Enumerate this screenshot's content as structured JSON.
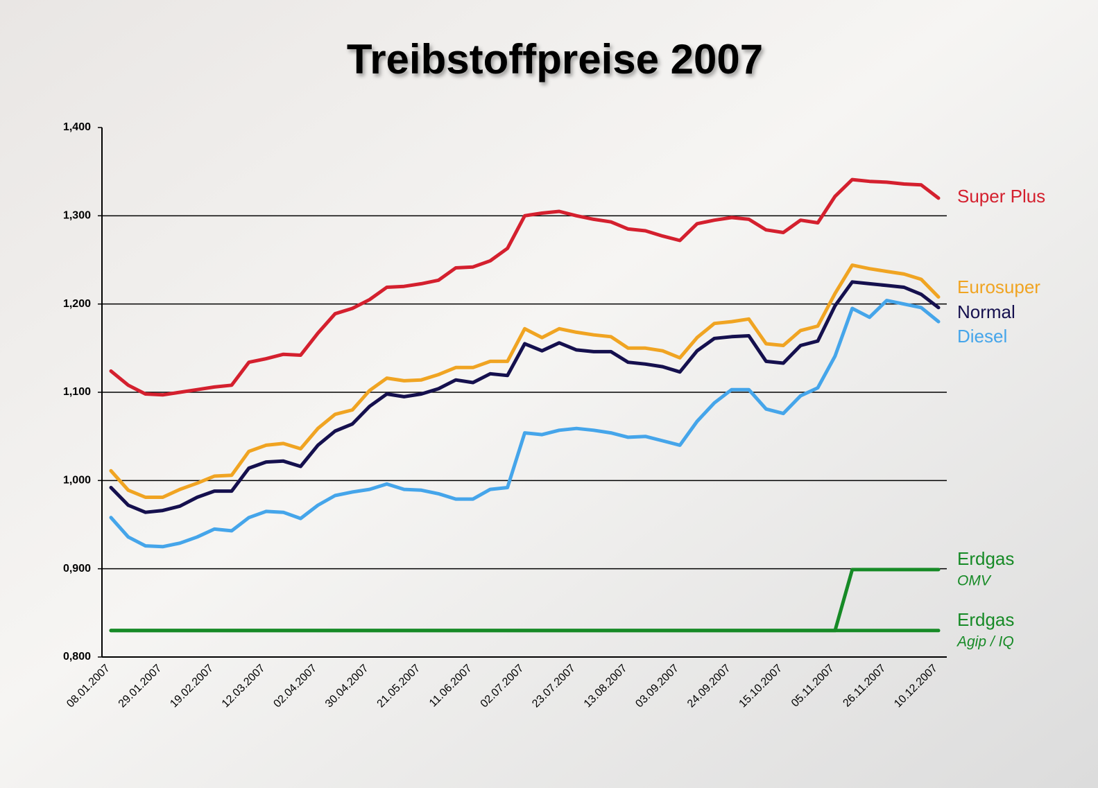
{
  "chart_data": {
    "type": "line",
    "title": "Treibstoffpreise 2007",
    "categories": [
      "08.01.2007",
      null,
      null,
      "29.01.2007",
      null,
      null,
      "19.02.2007",
      null,
      null,
      "12.03.2007",
      null,
      null,
      "02.04.2007",
      null,
      null,
      "30.04.2007",
      null,
      null,
      "21.05.2007",
      null,
      null,
      "11.06.2007",
      null,
      null,
      "02.07.2007",
      null,
      null,
      "23.07.2007",
      null,
      null,
      "13.08.2007",
      null,
      null,
      "03.09.2007",
      null,
      null,
      "24.09.2007",
      null,
      null,
      "15.10.2007",
      null,
      null,
      "05.11.2007",
      null,
      null,
      "26.11.2007",
      null,
      null,
      "10.12.2007"
    ],
    "ylim": [
      0.8,
      1.4
    ],
    "yticks": [
      {
        "value": 0.8,
        "label": "0,800"
      },
      {
        "value": 0.9,
        "label": "0,900"
      },
      {
        "value": 1.0,
        "label": "1,000"
      },
      {
        "value": 1.1,
        "label": "1,100"
      },
      {
        "value": 1.2,
        "label": "1,200"
      },
      {
        "value": 1.3,
        "label": "1,300"
      },
      {
        "value": 1.4,
        "label": "1,400"
      }
    ],
    "grid": true,
    "series": [
      {
        "name": "Super Plus",
        "color": "#d4202e",
        "values": [
          1.124,
          1.108,
          1.098,
          1.097,
          1.1,
          1.103,
          1.106,
          1.108,
          1.134,
          1.138,
          1.143,
          1.142,
          1.167,
          1.189,
          1.195,
          1.205,
          1.219,
          1.22,
          1.223,
          1.227,
          1.241,
          1.242,
          1.249,
          1.263,
          1.3,
          1.303,
          1.305,
          1.3,
          1.296,
          1.293,
          1.285,
          1.283,
          1.277,
          1.272,
          1.291,
          1.295,
          1.298,
          1.296,
          1.284,
          1.281,
          1.295,
          1.292,
          1.322,
          1.341,
          1.339,
          1.338,
          1.336,
          1.335,
          1.32
        ]
      },
      {
        "name": "Eurosuper",
        "color": "#f0a422",
        "values": [
          1.011,
          0.989,
          0.981,
          0.981,
          0.99,
          0.997,
          1.005,
          1.006,
          1.033,
          1.04,
          1.042,
          1.036,
          1.059,
          1.075,
          1.08,
          1.102,
          1.116,
          1.113,
          1.114,
          1.12,
          1.128,
          1.128,
          1.135,
          1.135,
          1.172,
          1.162,
          1.172,
          1.168,
          1.165,
          1.163,
          1.15,
          1.15,
          1.147,
          1.139,
          1.162,
          1.178,
          1.18,
          1.183,
          1.155,
          1.153,
          1.17,
          1.175,
          1.212,
          1.244,
          1.24,
          1.237,
          1.234,
          1.228,
          1.208
        ]
      },
      {
        "name": "Normal",
        "color": "#15104e",
        "values": [
          0.992,
          0.972,
          0.964,
          0.966,
          0.971,
          0.981,
          0.988,
          0.988,
          1.014,
          1.021,
          1.022,
          1.016,
          1.04,
          1.056,
          1.064,
          1.084,
          1.098,
          1.095,
          1.098,
          1.104,
          1.114,
          1.111,
          1.121,
          1.119,
          1.155,
          1.147,
          1.156,
          1.148,
          1.146,
          1.146,
          1.134,
          1.132,
          1.129,
          1.123,
          1.147,
          1.161,
          1.163,
          1.164,
          1.135,
          1.133,
          1.153,
          1.158,
          1.198,
          1.225,
          1.223,
          1.221,
          1.219,
          1.211,
          1.196
        ]
      },
      {
        "name": "Diesel",
        "color": "#45a5ea",
        "values": [
          0.958,
          0.936,
          0.926,
          0.925,
          0.929,
          0.936,
          0.945,
          0.943,
          0.958,
          0.965,
          0.964,
          0.957,
          0.972,
          0.983,
          0.987,
          0.99,
          0.996,
          0.99,
          0.989,
          0.985,
          0.979,
          0.979,
          0.99,
          0.992,
          1.054,
          1.052,
          1.057,
          1.059,
          1.057,
          1.054,
          1.049,
          1.05,
          1.045,
          1.04,
          1.067,
          1.088,
          1.103,
          1.103,
          1.081,
          1.076,
          1.096,
          1.105,
          1.141,
          1.195,
          1.185,
          1.204,
          1.2,
          1.196,
          1.18
        ]
      },
      {
        "name": "Erdgas",
        "provider": "OMV",
        "color": "#168a26",
        "values": [
          0.83,
          0.83,
          0.83,
          0.83,
          0.83,
          0.83,
          0.83,
          0.83,
          0.83,
          0.83,
          0.83,
          0.83,
          0.83,
          0.83,
          0.83,
          0.83,
          0.83,
          0.83,
          0.83,
          0.83,
          0.83,
          0.83,
          0.83,
          0.83,
          0.83,
          0.83,
          0.83,
          0.83,
          0.83,
          0.83,
          0.83,
          0.83,
          0.83,
          0.83,
          0.83,
          0.83,
          0.83,
          0.83,
          0.83,
          0.83,
          0.83,
          0.83,
          0.83,
          0.899,
          0.899,
          0.899,
          0.899,
          0.899,
          0.899
        ]
      },
      {
        "name": "Erdgas",
        "provider": "Agip / IQ",
        "color": "#168a26",
        "values": [
          0.83,
          0.83,
          0.83,
          0.83,
          0.83,
          0.83,
          0.83,
          0.83,
          0.83,
          0.83,
          0.83,
          0.83,
          0.83,
          0.83,
          0.83,
          0.83,
          0.83,
          0.83,
          0.83,
          0.83,
          0.83,
          0.83,
          0.83,
          0.83,
          0.83,
          0.83,
          0.83,
          0.83,
          0.83,
          0.83,
          0.83,
          0.83,
          0.83,
          0.83,
          0.83,
          0.83,
          0.83,
          0.83,
          0.83,
          0.83,
          0.83,
          0.83,
          0.83,
          0.83,
          0.83,
          0.83,
          0.83,
          0.83,
          0.83
        ]
      }
    ]
  }
}
